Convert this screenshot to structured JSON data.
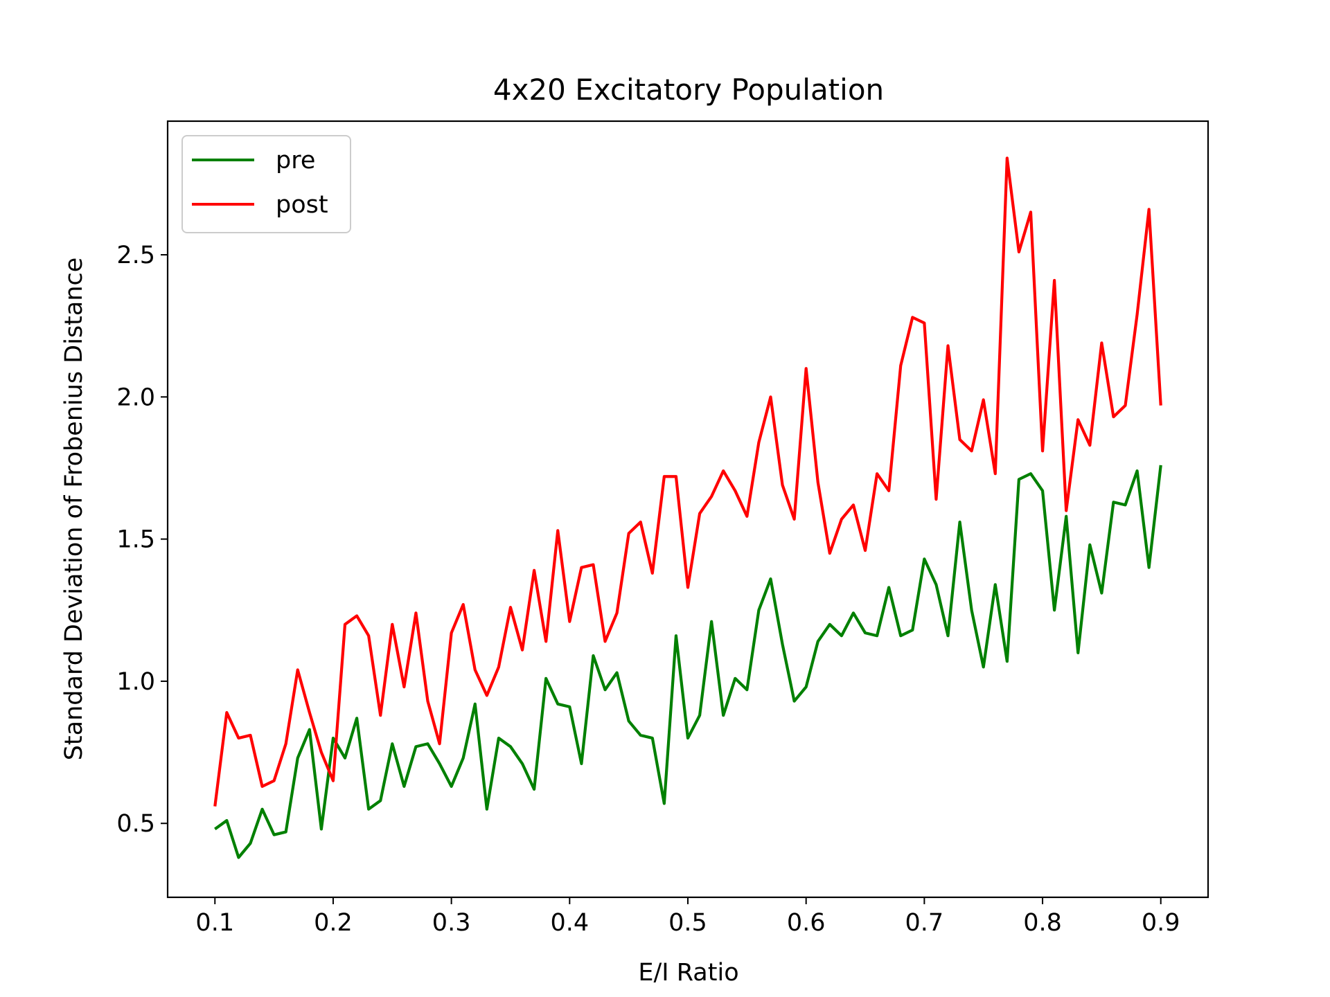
{
  "chart_data": {
    "type": "line",
    "title": "4x20 Excitatory Population",
    "xlabel": "E/I Ratio",
    "ylabel": "Standard Deviation of Frobenius Distance",
    "xlim": [
      0.06,
      0.94
    ],
    "ylim": [
      0.24,
      2.97
    ],
    "xticks": [
      "0.1",
      "0.2",
      "0.3",
      "0.4",
      "0.5",
      "0.6",
      "0.7",
      "0.8",
      "0.9"
    ],
    "yticks": [
      "0.5",
      "1.0",
      "1.5",
      "2.0",
      "2.5"
    ],
    "grid": false,
    "legend_position": "top-left",
    "x": [
      0.1,
      0.11,
      0.12,
      0.13,
      0.14,
      0.15,
      0.16,
      0.17,
      0.18,
      0.19,
      0.2,
      0.21,
      0.22,
      0.23,
      0.24,
      0.25,
      0.26,
      0.27,
      0.28,
      0.29,
      0.3,
      0.31,
      0.32,
      0.33,
      0.34,
      0.35,
      0.36,
      0.37,
      0.38,
      0.39,
      0.4,
      0.41,
      0.42,
      0.43,
      0.44,
      0.45,
      0.46,
      0.47,
      0.48,
      0.49,
      0.5,
      0.51,
      0.52,
      0.53,
      0.54,
      0.55,
      0.56,
      0.57,
      0.58,
      0.59,
      0.6,
      0.61,
      0.62,
      0.63,
      0.64,
      0.65,
      0.66,
      0.67,
      0.68,
      0.69,
      0.7,
      0.71,
      0.72,
      0.73,
      0.74,
      0.75,
      0.76,
      0.77,
      0.78,
      0.79,
      0.8,
      0.81,
      0.82,
      0.83,
      0.84,
      0.85,
      0.86,
      0.87,
      0.88,
      0.89,
      0.9
    ],
    "series": [
      {
        "name": "pre",
        "color": "#008000",
        "values": [
          0.48,
          0.51,
          0.38,
          0.43,
          0.55,
          0.46,
          0.47,
          0.73,
          0.83,
          0.48,
          0.8,
          0.73,
          0.87,
          0.55,
          0.58,
          0.78,
          0.63,
          0.77,
          0.78,
          0.71,
          0.63,
          0.73,
          0.92,
          0.55,
          0.8,
          0.77,
          0.71,
          0.62,
          1.01,
          0.92,
          0.91,
          0.71,
          1.09,
          0.97,
          1.03,
          0.86,
          0.81,
          0.8,
          0.57,
          1.16,
          0.8,
          0.88,
          1.21,
          0.88,
          1.01,
          0.97,
          1.25,
          1.36,
          1.13,
          0.93,
          0.98,
          1.14,
          1.2,
          1.16,
          1.24,
          1.17,
          1.16,
          1.33,
          1.16,
          1.18,
          1.43,
          1.34,
          1.16,
          1.56,
          1.25,
          1.05,
          1.34,
          1.07,
          1.71,
          1.73,
          1.67,
          1.25,
          1.58,
          1.1,
          1.48,
          1.31,
          1.63,
          1.62,
          1.74,
          1.4,
          1.76
        ]
      },
      {
        "name": "post",
        "color": "#ff0000",
        "values": [
          0.56,
          0.89,
          0.8,
          0.81,
          0.63,
          0.65,
          0.78,
          1.04,
          0.89,
          0.75,
          0.65,
          1.2,
          1.23,
          1.16,
          0.88,
          1.2,
          0.98,
          1.24,
          0.93,
          0.78,
          1.17,
          1.27,
          1.04,
          0.95,
          1.05,
          1.26,
          1.11,
          1.39,
          1.14,
          1.53,
          1.21,
          1.4,
          1.41,
          1.14,
          1.24,
          1.52,
          1.56,
          1.38,
          1.72,
          1.72,
          1.33,
          1.59,
          1.65,
          1.74,
          1.67,
          1.58,
          1.84,
          2.0,
          1.69,
          1.57,
          2.1,
          1.7,
          1.45,
          1.57,
          1.62,
          1.46,
          1.73,
          1.67,
          2.11,
          2.28,
          2.26,
          1.64,
          2.18,
          1.85,
          1.81,
          1.99,
          1.73,
          2.84,
          2.51,
          2.65,
          1.81,
          2.41,
          1.6,
          1.92,
          1.83,
          2.19,
          1.93,
          1.97,
          2.29,
          2.66,
          1.97
        ]
      }
    ]
  }
}
